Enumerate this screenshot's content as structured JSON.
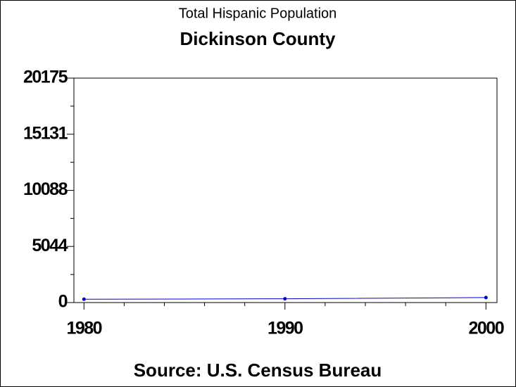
{
  "chart_data": {
    "type": "line",
    "title": "Total Hispanic Population",
    "subtitle": "Dickinson County",
    "source": "Source: U.S. Census Bureau",
    "x": [
      1980,
      1990,
      2000
    ],
    "values": [
      300,
      340,
      450
    ],
    "color": "#0000cc",
    "xlim": [
      1979.5,
      2000.55
    ],
    "xticks": [
      1980,
      1990,
      2000
    ],
    "ylim": [
      0,
      20175
    ],
    "yticks": [
      0,
      5044,
      10088,
      15131,
      20175
    ]
  }
}
